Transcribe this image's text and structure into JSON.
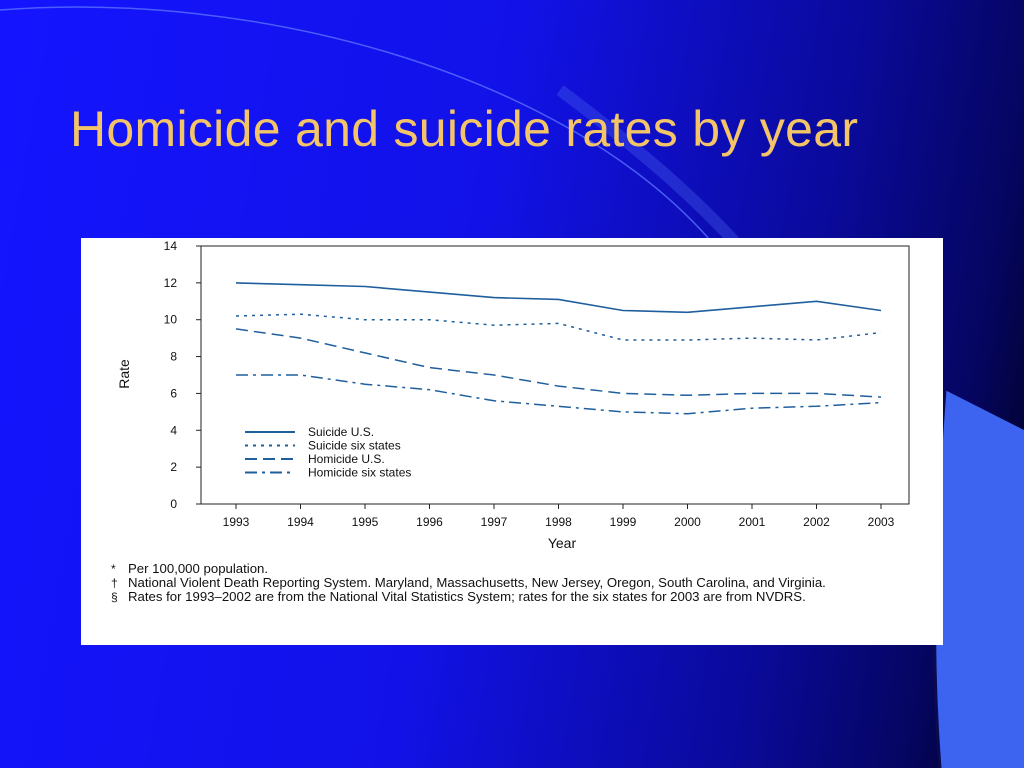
{
  "slide": {
    "title": "Homicide and suicide rates by year",
    "background_color": "#1414ff",
    "title_color": "#f4c468"
  },
  "chart_data": {
    "type": "line",
    "title": "",
    "xlabel": "Year",
    "ylabel": "Rate",
    "categories": [
      "1993",
      "1994",
      "1995",
      "1996",
      "1997",
      "1998",
      "1999",
      "2000",
      "2001",
      "2002",
      "2003"
    ],
    "ylim": [
      0,
      14
    ],
    "yticks": [
      0,
      2,
      4,
      6,
      8,
      10,
      12,
      14
    ],
    "grid": false,
    "legend_position": "lower-left",
    "series": [
      {
        "name": "Suicide U.S.",
        "style": "solid",
        "values": [
          12.0,
          11.9,
          11.8,
          11.5,
          11.2,
          11.1,
          10.5,
          10.4,
          10.7,
          11.0,
          10.5
        ]
      },
      {
        "name": "Suicide six states",
        "style": "dotted",
        "values": [
          10.2,
          10.3,
          10.0,
          10.0,
          9.7,
          9.8,
          8.9,
          8.9,
          9.0,
          8.9,
          9.3
        ]
      },
      {
        "name": "Homicide U.S.",
        "style": "dashed",
        "values": [
          9.5,
          9.0,
          8.2,
          7.4,
          7.0,
          6.4,
          6.0,
          5.9,
          6.0,
          6.0,
          5.8
        ]
      },
      {
        "name": "Homicide six states",
        "style": "dashdot",
        "values": [
          7.0,
          7.0,
          6.5,
          6.2,
          5.6,
          5.3,
          5.0,
          4.9,
          5.2,
          5.3,
          5.5
        ]
      }
    ],
    "line_color": "#1f5f9e",
    "footnotes": [
      {
        "mark": "*",
        "text": "Per 100,000 population."
      },
      {
        "mark": "†",
        "text": "National Violent Death Reporting System. Maryland, Massachusetts, New Jersey, Oregon, South Carolina, and Virginia."
      },
      {
        "mark": "§",
        "text": "Rates for 1993–2002 are from the National Vital Statistics System; rates for the six states for 2003 are from NVDRS."
      }
    ]
  }
}
